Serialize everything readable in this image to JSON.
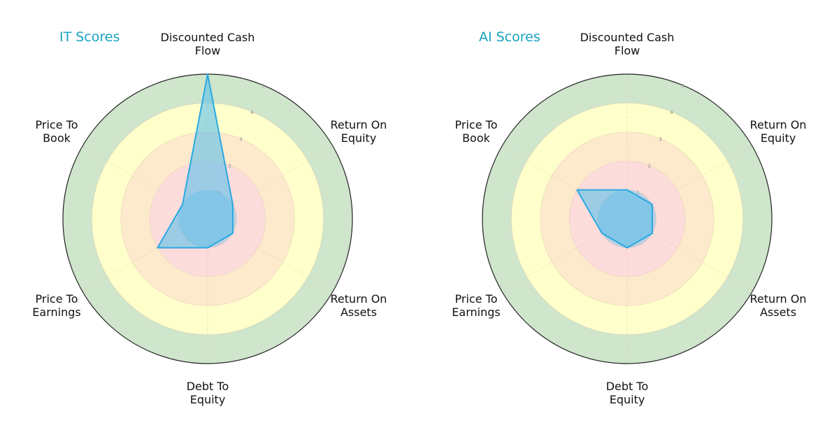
{
  "colors": {
    "title": "#17a2c0",
    "band_5": "#cfe5cc",
    "band_4": "#ffffcc",
    "band_3": "#fde9cc",
    "band_2": "#fddcdc",
    "band_1": "#fddcdc",
    "inner_circle": "#8cc5e4",
    "polygon_fill": "#5bc0eb",
    "polygon_stroke": "#29a9e1",
    "outer_ring": "#222222",
    "gridline": "#d9c9a9",
    "tick_label": "#8a8a8a"
  },
  "axes": [
    "Discounted Cash\nFlow",
    "Return On\nEquity",
    "Return On\nAssets",
    "Debt To\nEquity",
    "Price To\nEarnings",
    "Price To\nBook"
  ],
  "charts": [
    {
      "title": "IT Scores"
    },
    {
      "title": "AI Scores"
    }
  ],
  "chart_data": [
    {
      "type": "radar",
      "title": "IT Scores",
      "categories": [
        "Discounted Cash Flow",
        "Return On Equity",
        "Return On Assets",
        "Debt To Equity",
        "Price To Earnings",
        "Price To Book"
      ],
      "values": [
        5,
        1,
        1,
        1,
        2,
        1
      ],
      "rlim": [
        0,
        5
      ],
      "rticks": [
        1,
        2,
        3,
        4,
        5
      ],
      "bands": [
        {
          "range": [
            0,
            2
          ],
          "color": "#fddcdc"
        },
        {
          "range": [
            2,
            3
          ],
          "color": "#fde9cc"
        },
        {
          "range": [
            3,
            4
          ],
          "color": "#ffffcc"
        },
        {
          "range": [
            4,
            5
          ],
          "color": "#cfe5cc"
        }
      ]
    },
    {
      "type": "radar",
      "title": "AI Scores",
      "categories": [
        "Discounted Cash Flow",
        "Return On Equity",
        "Return On Assets",
        "Debt To Equity",
        "Price To Earnings",
        "Price To Book"
      ],
      "values": [
        1,
        1,
        1,
        1,
        1,
        2
      ],
      "rlim": [
        0,
        5
      ],
      "rticks": [
        1,
        2,
        3,
        4,
        5
      ],
      "bands": [
        {
          "range": [
            0,
            2
          ],
          "color": "#fddcdc"
        },
        {
          "range": [
            2,
            3
          ],
          "color": "#fde9cc"
        },
        {
          "range": [
            3,
            4
          ],
          "color": "#ffffcc"
        },
        {
          "range": [
            4,
            5
          ],
          "color": "#cfe5cc"
        }
      ]
    }
  ]
}
